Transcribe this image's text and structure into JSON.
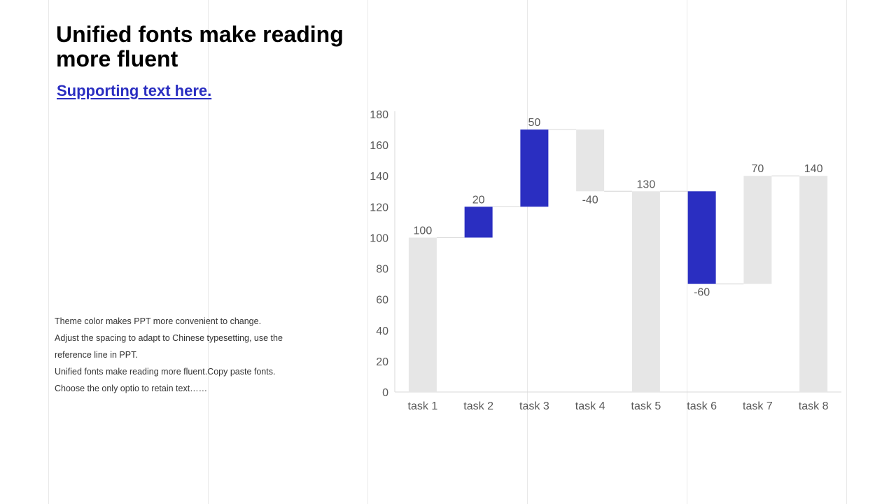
{
  "slide": {
    "title": "Unified fonts make reading more fluent",
    "subtitle": "Supporting text here.",
    "body_lines": [
      "Theme  color makes PPT more convenient  to change.",
      "Adjust the spacing to adapt to Chinese typesetting, use the",
      "reference line in PPT.",
      "Unified  fonts make reading more fluent.Copy paste fonts.",
      "Choose the only optio to retain text……"
    ]
  },
  "chart_data": {
    "type": "bar",
    "subtype": "waterfall",
    "categories": [
      "task 1",
      "task 2",
      "task 3",
      "task 4",
      "task 5",
      "task 6",
      "task 7",
      "task 8"
    ],
    "values": [
      100,
      20,
      50,
      -40,
      130,
      -60,
      70,
      140
    ],
    "bar_kinds": [
      "total",
      "increase",
      "increase",
      "decrease",
      "total",
      "decrease",
      "increase",
      "total"
    ],
    "data_labels": [
      "100",
      "20",
      "50",
      "-40",
      "130",
      "-60",
      "70",
      "140"
    ],
    "ylim": [
      0,
      180
    ],
    "yticks": [
      0,
      20,
      40,
      60,
      80,
      100,
      120,
      140,
      160,
      180
    ],
    "grid": false,
    "legend": "none",
    "colors": {
      "accent": "#2a2ec1",
      "neutral": "#e6e6e6",
      "connector": "#dcdcdc",
      "axis": "#d9d9d9",
      "label": "#595959"
    },
    "color_roles": [
      "neutral",
      "accent",
      "accent",
      "neutral",
      "neutral",
      "accent",
      "neutral",
      "neutral"
    ]
  }
}
